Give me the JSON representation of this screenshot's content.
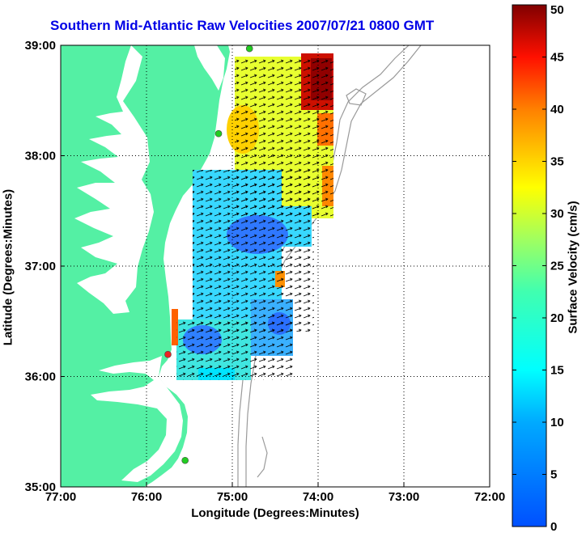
{
  "map": {
    "title": "Southern Mid-Atlantic Raw Velocities 2007/07/21 0800 GMT",
    "xlabel": "Longitude (Degrees:Minutes)",
    "ylabel": "Latitude (Degrees:Minutes)",
    "colorbar_label": "Surface Velocity (cm/s)",
    "colorbar_range": [
      0,
      50
    ],
    "colorbar_ticks": [
      "0",
      "5",
      "10",
      "15",
      "20",
      "25",
      "30",
      "35",
      "40",
      "45",
      "50"
    ],
    "land_color": "#54f0a4",
    "bathymetry_color": "#9a9a9a",
    "grid": true
  },
  "chart_data": {
    "type": "map",
    "xlim": [
      -77,
      -72
    ],
    "ylim": [
      35,
      39
    ],
    "x_ticks": [
      "77:00",
      "76:00",
      "75:00",
      "74:00",
      "73:00",
      "72:00"
    ],
    "y_ticks": [
      "35:00",
      "36:00",
      "37:00",
      "38:00",
      "39:00"
    ],
    "stations": [
      {
        "lon": -74.8,
        "lat": 38.97,
        "color": "#22cc22"
      },
      {
        "lon": -75.16,
        "lat": 38.2,
        "color": "#22cc22"
      },
      {
        "lon": -75.75,
        "lat": 36.2,
        "color": "#ee2222"
      },
      {
        "lon": -75.55,
        "lat": 35.24,
        "color": "#22cc22"
      }
    ]
  }
}
